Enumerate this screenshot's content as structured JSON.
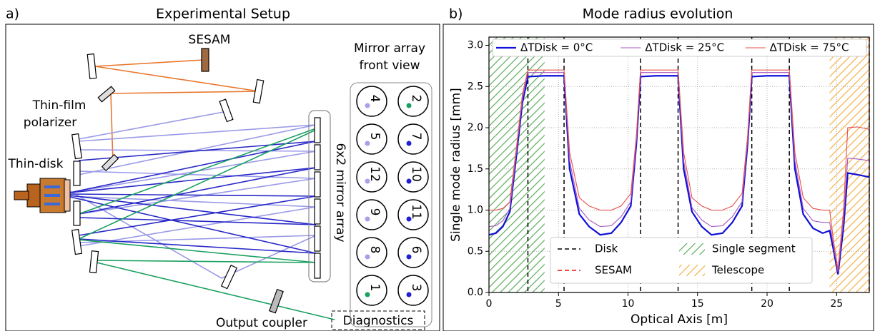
{
  "diagram": {
    "label": "a)",
    "title": "Experimental Setup",
    "sesam": "SESAM",
    "polarizer": [
      "Thin-film",
      "polarizer"
    ],
    "thin_disk": "Thin-disk",
    "front_view": [
      "Mirror array",
      "front view"
    ],
    "array": "6x2 mirror array",
    "output_coupler": "Output coupler",
    "diagnostics": "Diagnostics",
    "mirrors": [
      "4",
      "2",
      "5",
      "7",
      "12",
      "10",
      "9",
      "11",
      "8",
      "6",
      "1",
      "3"
    ]
  },
  "chart_data": {
    "type": "line",
    "label": "b)",
    "title": "Mode radius evolution",
    "x_label": "Optical Axis [m]",
    "y_label": "Single mode radius [mm]",
    "xlim": [
      0,
      27.35
    ],
    "ylim": [
      0,
      3.1
    ],
    "xticks": [
      0,
      5,
      10,
      15,
      20,
      25
    ],
    "yticks": [
      {
        "value": 0,
        "label": "0.0"
      },
      0.5,
      {
        "value": 1,
        "label": "1.0"
      },
      1.5,
      {
        "value": 2,
        "label": "2.0"
      },
      2.5,
      {
        "value": 3,
        "label": "3.0"
      }
    ],
    "grid": true,
    "x": [
      0,
      0.5,
      1,
      1.5,
      2,
      2.4,
      2.8,
      4,
      5.4,
      5.8,
      6.5,
      7.2,
      8,
      8.8,
      9.5,
      10.2,
      10.6,
      10.9,
      12,
      13.6,
      14,
      14.6,
      15.3,
      16,
      16.8,
      17.5,
      18.2,
      18.6,
      18.9,
      20,
      21.6,
      22,
      22.6,
      23.3,
      24,
      24.5,
      24.8,
      25.1,
      25.5,
      25.8,
      26.5,
      27.35
    ],
    "series": [
      {
        "name": "ΔTDisk = 0°C",
        "color": "#1010d8",
        "values": [
          0.7,
          0.72,
          0.8,
          0.98,
          1.7,
          2.3,
          2.62,
          2.63,
          2.63,
          1.5,
          0.95,
          0.8,
          0.7,
          0.72,
          0.85,
          1.05,
          1.8,
          2.62,
          2.63,
          2.63,
          1.5,
          0.98,
          0.8,
          0.7,
          0.72,
          0.85,
          1.05,
          1.8,
          2.62,
          2.63,
          2.63,
          1.5,
          0.95,
          0.78,
          0.72,
          0.75,
          0.5,
          0.22,
          0.8,
          1.45,
          1.43,
          1.4
        ]
      },
      {
        "name": "ΔTDisk = 25°C",
        "color": "#a855c0",
        "values": [
          0.8,
          0.81,
          0.87,
          1.02,
          1.75,
          2.35,
          2.67,
          2.67,
          2.67,
          1.6,
          1.02,
          0.88,
          0.8,
          0.81,
          0.92,
          1.1,
          1.85,
          2.67,
          2.67,
          2.67,
          1.6,
          1.03,
          0.88,
          0.8,
          0.81,
          0.92,
          1.1,
          1.85,
          2.67,
          2.67,
          2.67,
          1.6,
          1.02,
          0.87,
          0.85,
          0.85,
          0.55,
          0.25,
          0.9,
          1.63,
          1.62,
          1.6
        ]
      },
      {
        "name": "ΔTDisk = 75°C",
        "color": "#e8504a",
        "values": [
          1.0,
          1.0,
          1.02,
          1.1,
          1.8,
          2.4,
          2.7,
          2.7,
          2.7,
          1.7,
          1.15,
          1.05,
          1.0,
          1.0,
          1.05,
          1.2,
          1.9,
          2.7,
          2.7,
          2.7,
          1.7,
          1.15,
          1.05,
          1.0,
          1.0,
          1.05,
          1.2,
          1.9,
          2.7,
          2.7,
          2.7,
          1.7,
          1.15,
          1.02,
          1.0,
          1.0,
          0.6,
          0.28,
          1.0,
          2.0,
          2.01,
          1.98
        ]
      }
    ],
    "vlines": [
      {
        "name": "Disk",
        "color": "#000000",
        "x": [
          2.8,
          5.4,
          10.9,
          13.6,
          18.9,
          21.6
        ]
      },
      {
        "name": "SESAM",
        "color": "#e01010",
        "x": [
          27.35
        ]
      }
    ],
    "regions": [
      {
        "name": "Single segment",
        "color": "#3a9a3a",
        "x": [
          0,
          4.0
        ]
      },
      {
        "name": "Telescope",
        "color": "#f0a020",
        "x": [
          24.5,
          27.35
        ]
      }
    ]
  }
}
